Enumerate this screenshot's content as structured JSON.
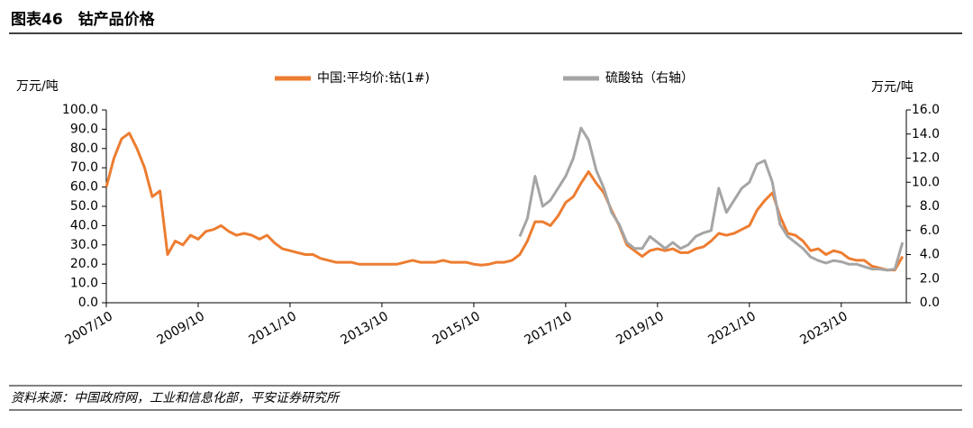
{
  "header": {
    "title": "图表46　钴产品价格"
  },
  "source": "资料来源：中国政府网，工业和信息化部，平安证券研究所",
  "chart_data": {
    "type": "line",
    "y_label": "万元/吨",
    "y2_label": "万元/吨",
    "x": [
      "2007/10",
      "2007/12",
      "2008/02",
      "2008/04",
      "2008/06",
      "2008/08",
      "2008/10",
      "2008/12",
      "2009/02",
      "2009/04",
      "2009/06",
      "2009/08",
      "2009/10",
      "2009/12",
      "2010/02",
      "2010/04",
      "2010/06",
      "2010/08",
      "2010/10",
      "2010/12",
      "2011/02",
      "2011/04",
      "2011/06",
      "2011/08",
      "2011/10",
      "2011/12",
      "2012/02",
      "2012/04",
      "2012/06",
      "2012/08",
      "2012/10",
      "2012/12",
      "2013/02",
      "2013/04",
      "2013/06",
      "2013/08",
      "2013/10",
      "2013/12",
      "2014/02",
      "2014/04",
      "2014/06",
      "2014/08",
      "2014/10",
      "2014/12",
      "2015/02",
      "2015/04",
      "2015/06",
      "2015/08",
      "2015/10",
      "2015/12",
      "2016/02",
      "2016/04",
      "2016/06",
      "2016/08",
      "2016/10",
      "2016/12",
      "2017/02",
      "2017/04",
      "2017/06",
      "2017/08",
      "2017/10",
      "2017/12",
      "2018/02",
      "2018/04",
      "2018/06",
      "2018/08",
      "2018/10",
      "2018/12",
      "2019/02",
      "2019/04",
      "2019/06",
      "2019/08",
      "2019/10",
      "2019/12",
      "2020/02",
      "2020/04",
      "2020/06",
      "2020/08",
      "2020/10",
      "2020/12",
      "2021/02",
      "2021/04",
      "2021/06",
      "2021/08",
      "2021/10",
      "2021/12",
      "2022/02",
      "2022/04",
      "2022/06",
      "2022/08",
      "2022/10",
      "2022/12",
      "2023/02",
      "2023/04",
      "2023/06",
      "2023/08",
      "2023/10",
      "2023/12",
      "2024/02",
      "2024/04",
      "2024/06",
      "2024/08",
      "2024/10",
      "2024/12",
      "2025/02"
    ],
    "series": [
      {
        "name": "中国:平均价:钴(1#)",
        "color": "#ED7D31",
        "values": [
          60,
          75,
          85,
          88,
          80,
          70,
          55,
          58,
          25,
          32,
          30,
          35,
          33,
          37,
          38,
          40,
          37,
          35,
          36,
          35,
          33,
          35,
          31,
          28,
          27,
          26,
          25,
          25,
          23,
          22,
          21,
          21,
          21,
          20,
          20,
          20,
          20,
          20,
          20,
          21,
          22,
          21,
          21,
          21,
          22,
          21,
          21,
          21,
          20,
          19.5,
          20,
          21,
          21,
          22,
          25,
          32,
          42,
          42,
          40,
          45,
          52,
          55,
          62,
          68,
          62,
          57,
          48,
          40,
          30,
          27,
          24,
          27,
          28,
          27,
          28,
          26,
          26,
          28,
          29,
          32,
          36,
          35,
          36,
          38,
          40,
          48,
          53,
          57,
          45,
          36,
          35,
          32,
          27,
          28,
          25,
          27,
          26,
          23,
          22,
          22,
          19,
          18,
          17,
          17,
          24
        ]
      },
      {
        "name": "硫酸钴（右轴）",
        "color": "#A5A5A5",
        "axis": "y2",
        "values": [
          null,
          null,
          null,
          null,
          null,
          null,
          null,
          null,
          null,
          null,
          null,
          null,
          null,
          null,
          null,
          null,
          null,
          null,
          null,
          null,
          null,
          null,
          null,
          null,
          null,
          null,
          null,
          null,
          null,
          null,
          null,
          null,
          null,
          null,
          null,
          null,
          null,
          null,
          null,
          null,
          null,
          null,
          null,
          null,
          null,
          null,
          null,
          null,
          null,
          null,
          null,
          null,
          null,
          null,
          5.5,
          7,
          10.5,
          8,
          8.5,
          9.5,
          10.5,
          12,
          14.5,
          13.5,
          11,
          9.5,
          7.5,
          6.5,
          5,
          4.5,
          4.5,
          5.5,
          5,
          4.5,
          5,
          4.5,
          4.8,
          5.5,
          5.8,
          6,
          9.5,
          7.5,
          8.5,
          9.5,
          10,
          11.5,
          11.8,
          10,
          6.5,
          5.5,
          5,
          4.5,
          3.8,
          3.5,
          3.3,
          3.5,
          3.4,
          3.2,
          3.2,
          3,
          2.8,
          2.8,
          2.7,
          2.8,
          5
        ]
      }
    ],
    "xlim": [
      "2007/10",
      "2025/03"
    ],
    "xticks": [
      "2007/10",
      "2009/10",
      "2011/10",
      "2013/10",
      "2015/10",
      "2017/10",
      "2019/10",
      "2021/10",
      "2023/10"
    ],
    "ylim": [
      0,
      100
    ],
    "yticks": [
      {
        "value": 0,
        "label": "0.0"
      },
      {
        "value": 10,
        "label": "10.0"
      },
      {
        "value": 20,
        "label": "20.0"
      },
      {
        "value": 30,
        "label": "30.0"
      },
      {
        "value": 40,
        "label": "40.0"
      },
      {
        "value": 50,
        "label": "50.0"
      },
      {
        "value": 60,
        "label": "60.0"
      },
      {
        "value": 70,
        "label": "70.0"
      },
      {
        "value": 80,
        "label": "80.0"
      },
      {
        "value": 90,
        "label": "90.0"
      },
      {
        "value": 100,
        "label": "100.0"
      }
    ],
    "y2lim": [
      0,
      16
    ],
    "y2ticks": [
      {
        "value": 0,
        "label": "0.0"
      },
      {
        "value": 2,
        "label": "2.0"
      },
      {
        "value": 4,
        "label": "4.0"
      },
      {
        "value": 6,
        "label": "6.0"
      },
      {
        "value": 8,
        "label": "8.0"
      },
      {
        "value": 10,
        "label": "10.0"
      },
      {
        "value": 12,
        "label": "12.0"
      },
      {
        "value": 14,
        "label": "14.0"
      },
      {
        "value": 16,
        "label": "16.0"
      }
    ],
    "grid": false,
    "legend": "top"
  }
}
